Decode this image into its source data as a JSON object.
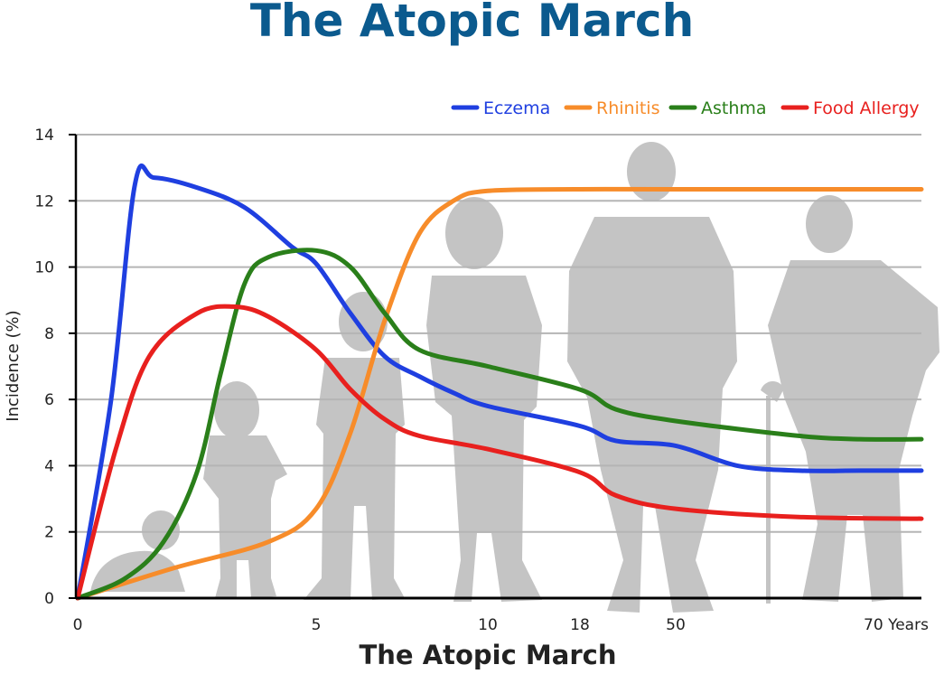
{
  "title": "The Atopic March",
  "chart_data": {
    "type": "line",
    "title": "The Atopic March",
    "xlabel": "The Atopic March",
    "ylabel": "Incidence (%)",
    "ylim": [
      0,
      14
    ],
    "yticks": [
      0,
      2,
      4,
      6,
      8,
      10,
      12,
      14
    ],
    "xticks": [
      {
        "label": "0",
        "x": 0
      },
      {
        "label": "5",
        "x": 5
      },
      {
        "label": "10",
        "x": 10
      },
      {
        "label": "18",
        "x": 18
      },
      {
        "label": "50",
        "x": 50
      },
      {
        "label": "70 Years",
        "x": 70
      }
    ],
    "grid": true,
    "legend_position": "top-right",
    "series": [
      {
        "name": "Eczema",
        "color": "#1f3fe0",
        "points": [
          [
            0,
            0
          ],
          [
            0.7,
            6
          ],
          [
            1.2,
            12.5
          ],
          [
            1.6,
            12.7
          ],
          [
            2.5,
            12.4
          ],
          [
            3.5,
            11.8
          ],
          [
            4.5,
            10.6
          ],
          [
            5,
            10.1
          ],
          [
            6,
            8.6
          ],
          [
            7,
            7.3
          ],
          [
            8,
            6.7
          ],
          [
            9,
            6.2
          ],
          [
            10,
            5.8
          ],
          [
            18,
            5.2
          ],
          [
            30,
            4.75
          ],
          [
            50,
            4.6
          ],
          [
            55,
            4.0
          ],
          [
            60,
            3.85
          ],
          [
            65,
            3.85
          ],
          [
            70,
            3.85
          ]
        ]
      },
      {
        "name": "Rhinitis",
        "color": "#f78c2a",
        "points": [
          [
            0,
            0
          ],
          [
            2,
            0.9
          ],
          [
            4,
            1.7
          ],
          [
            5,
            2.7
          ],
          [
            6,
            5.0
          ],
          [
            7,
            8.4
          ],
          [
            8,
            11.0
          ],
          [
            9,
            12.0
          ],
          [
            10,
            12.3
          ],
          [
            18,
            12.35
          ],
          [
            50,
            12.35
          ],
          [
            70,
            12.35
          ]
        ]
      },
      {
        "name": "Asthma",
        "color": "#2a7f1a",
        "points": [
          [
            0,
            0
          ],
          [
            1,
            0.6
          ],
          [
            1.8,
            1.7
          ],
          [
            2.5,
            3.8
          ],
          [
            3,
            6.8
          ],
          [
            3.5,
            9.5
          ],
          [
            4,
            10.3
          ],
          [
            5,
            10.5
          ],
          [
            6,
            10.0
          ],
          [
            7,
            8.6
          ],
          [
            8,
            7.5
          ],
          [
            10,
            7.0
          ],
          [
            18,
            6.3
          ],
          [
            30,
            5.7
          ],
          [
            50,
            5.35
          ],
          [
            60,
            4.9
          ],
          [
            65,
            4.8
          ],
          [
            70,
            4.8
          ]
        ]
      },
      {
        "name": "Food Allergy",
        "color": "#e8201e",
        "points": [
          [
            0,
            0
          ],
          [
            0.8,
            4.5
          ],
          [
            1.5,
            7.3
          ],
          [
            2.5,
            8.6
          ],
          [
            3.3,
            8.8
          ],
          [
            4,
            8.5
          ],
          [
            5,
            7.5
          ],
          [
            6,
            6.3
          ],
          [
            7,
            5.4
          ],
          [
            8,
            4.9
          ],
          [
            10,
            4.5
          ],
          [
            18,
            3.8
          ],
          [
            30,
            3.1
          ],
          [
            50,
            2.7
          ],
          [
            60,
            2.45
          ],
          [
            70,
            2.4
          ]
        ]
      }
    ]
  }
}
